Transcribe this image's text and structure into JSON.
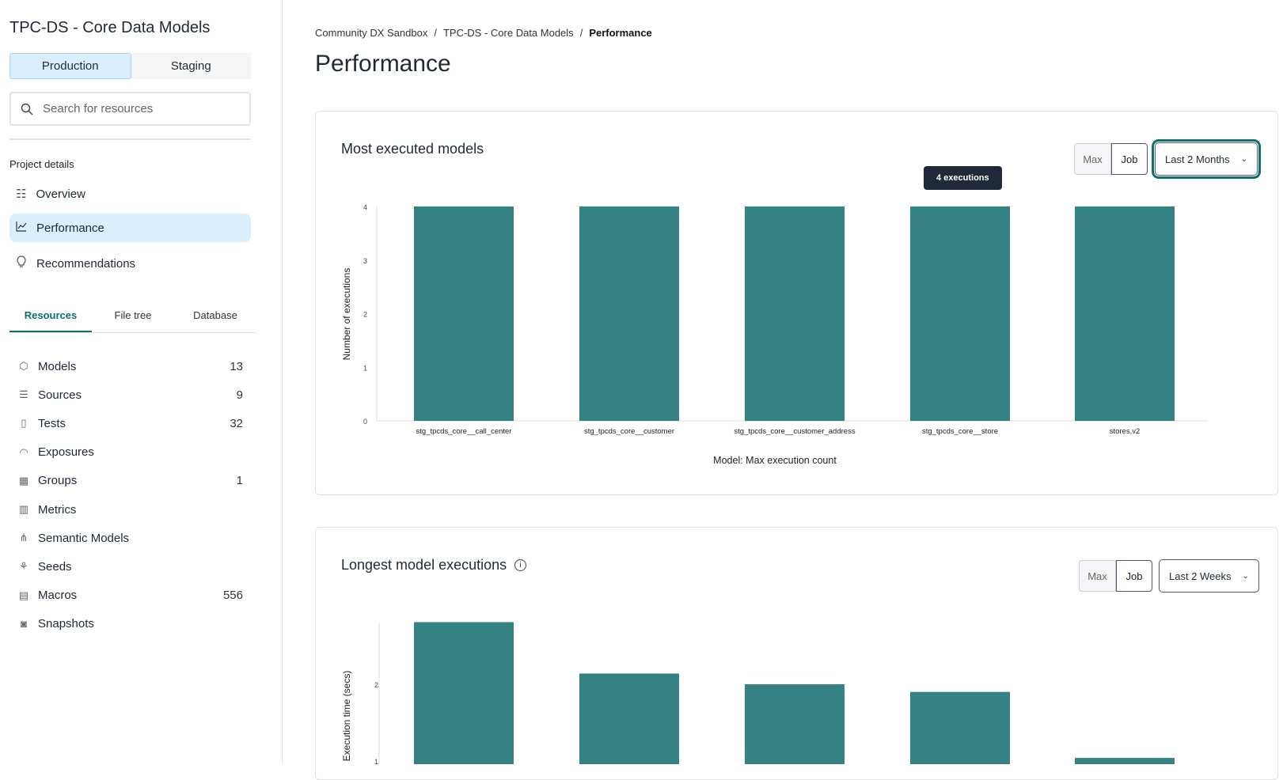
{
  "sidebar": {
    "project_title": "TPC-DS - Core Data Models",
    "environments": [
      "Production",
      "Staging"
    ],
    "search_placeholder": "Search for resources",
    "project_details_label": "Project details",
    "nav": [
      {
        "label": "Overview",
        "icon": "list-icon"
      },
      {
        "label": "Performance",
        "icon": "line-chart-icon"
      },
      {
        "label": "Recommendations",
        "icon": "lightbulb-icon"
      }
    ],
    "tabs": [
      "Resources",
      "File tree",
      "Database"
    ],
    "resources": [
      {
        "label": "Models",
        "count": "13",
        "icon": "cube-icon"
      },
      {
        "label": "Sources",
        "count": "9",
        "icon": "database-icon"
      },
      {
        "label": "Tests",
        "count": "32",
        "icon": "clipboard-icon"
      },
      {
        "label": "Exposures",
        "count": "",
        "icon": "gauge-icon"
      },
      {
        "label": "Groups",
        "count": "1",
        "icon": "grid-icon"
      },
      {
        "label": "Metrics",
        "count": "",
        "icon": "bar-chart-icon"
      },
      {
        "label": "Semantic Models",
        "count": "",
        "icon": "nodes-icon"
      },
      {
        "label": "Seeds",
        "count": "",
        "icon": "sprout-icon"
      },
      {
        "label": "Macros",
        "count": "556",
        "icon": "file-icon"
      },
      {
        "label": "Snapshots",
        "count": "",
        "icon": "camera-icon"
      }
    ]
  },
  "breadcrumb": [
    "Community DX Sandbox",
    "TPC-DS - Core Data Models",
    "Performance"
  ],
  "page_title": "Performance",
  "accent_color": "#348282",
  "cards": [
    {
      "title": "Most executed models",
      "toggle": [
        "Max",
        "Job"
      ],
      "range": "Last 2 Months",
      "tooltip": "4 executions"
    },
    {
      "title": "Longest model executions",
      "toggle": [
        "Max",
        "Job"
      ],
      "range": "Last 2 Weeks"
    }
  ],
  "chart_data": [
    {
      "type": "bar",
      "categories": [
        "stg_tpcds_core__call_center",
        "stg_tpcds_core__customer",
        "stg_tpcds_core__customer_address",
        "stg_tpcds_core__store",
        "stores.v2"
      ],
      "values": [
        4,
        4,
        4,
        4,
        4
      ],
      "xlabel": "Model: Max execution count",
      "ylabel": "Number of executions",
      "yticks": [
        "0",
        "1",
        "2",
        "3",
        "4"
      ],
      "ylim": [
        0,
        4
      ]
    },
    {
      "type": "bar",
      "values": [
        2.81,
        2.14,
        2.0,
        1.9,
        1.04
      ],
      "ylabel": "Execution time (secs)",
      "yticks": [
        "1",
        "2"
      ]
    }
  ]
}
